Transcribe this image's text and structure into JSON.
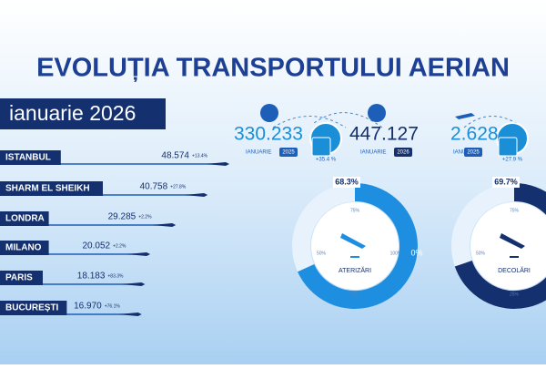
{
  "header": {
    "title": "EVOLUȚIA TRANSPORTULUI AERIAN",
    "subtitle": "ianuarie 2026"
  },
  "routes": [
    {
      "city": "ISTANBUL",
      "passengers": {
        "value": 48574,
        "label": "48.574"
      },
      "change": "+13.4%"
    },
    {
      "city": "SHARM EL SHEIKH",
      "passengers": {
        "value": 40758,
        "label": "40.758"
      },
      "change": "+27.8%"
    },
    {
      "city": "LONDRA",
      "passengers": {
        "value": 29285,
        "label": "29.285"
      },
      "change": "+2.2%"
    },
    {
      "city": "MILANO",
      "passengers": {
        "value": 20052,
        "label": "20.052"
      },
      "change": "+2.2%"
    },
    {
      "city": "PARIS",
      "passengers": {
        "value": 18183,
        "label": "18.183"
      },
      "change": "+83.3%"
    },
    {
      "city": "BUCUREȘTI",
      "passengers": {
        "value": 16970,
        "label": "16.970"
      },
      "change": "+76.1%"
    }
  ],
  "passengers": {
    "prev": "330.233",
    "prev_month": "IANUARIE",
    "prev_year": "2025",
    "curr": "447.127",
    "curr_month": "IANUARIE",
    "curr_year": "2026",
    "growth": "+35.4 %"
  },
  "flights": {
    "prev": "2.628",
    "prev_month": "IANUARIE",
    "prev_year": "2025",
    "growth": "+27.9 %"
  },
  "donuts": [
    {
      "label": "ATERIZĂRI",
      "share": {
        "value": 68.3,
        "label": "68.3%"
      },
      "t75": "75%",
      "t50": "50%",
      "t100": "100%",
      "t0": "0%",
      "t25": "25%"
    },
    {
      "label": "DECOLĂRI",
      "share": {
        "value": 69.7,
        "label": "69.7%"
      },
      "t75": "75%",
      "t50": "50%",
      "t25": "25%"
    }
  ]
}
